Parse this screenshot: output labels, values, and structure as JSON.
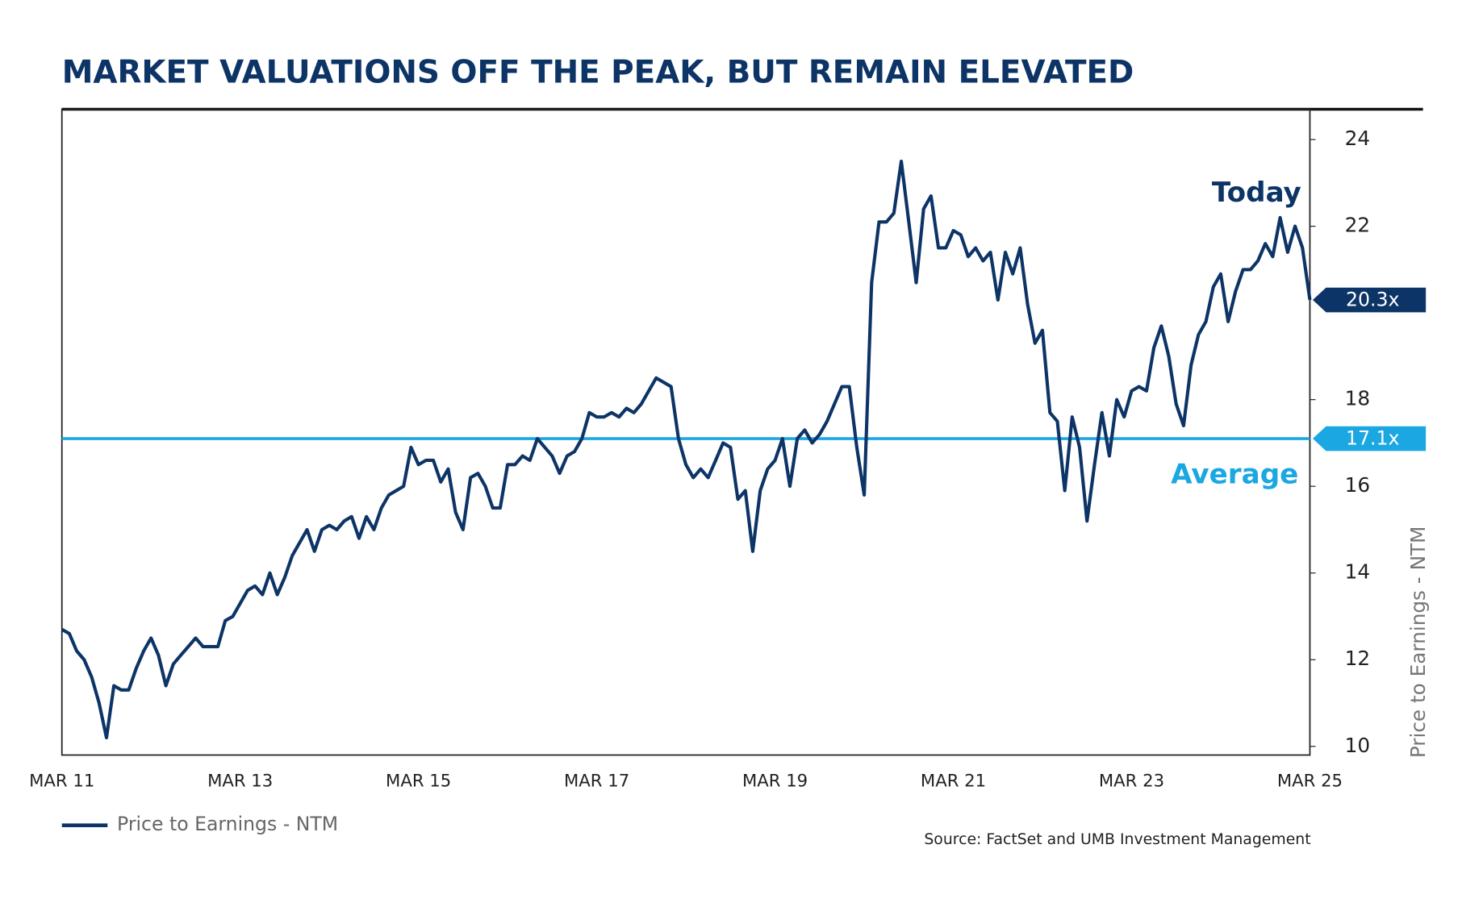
{
  "chart_data": {
    "type": "line",
    "title": "MARKET VALUATIONS OFF THE PEAK, BUT REMAIN ELEVATED",
    "y_axis_label": "Price to Earnings - NTM",
    "source": "Source: FactSet and UMB Investment Management",
    "categories": [
      "MAR 11",
      null,
      null,
      null,
      null,
      null,
      null,
      null,
      null,
      null,
      null,
      null,
      null,
      null,
      null,
      null,
      null,
      null,
      null,
      null,
      null,
      null,
      null,
      null,
      "MAR 13",
      null,
      null,
      null,
      null,
      null,
      null,
      null,
      null,
      null,
      null,
      null,
      null,
      null,
      null,
      null,
      null,
      null,
      null,
      null,
      null,
      null,
      null,
      null,
      "MAR 15",
      null,
      null,
      null,
      null,
      null,
      null,
      null,
      null,
      null,
      null,
      null,
      null,
      null,
      null,
      null,
      null,
      null,
      null,
      null,
      null,
      null,
      null,
      null,
      "MAR 17",
      null,
      null,
      null,
      null,
      null,
      null,
      null,
      null,
      null,
      null,
      null,
      null,
      null,
      null,
      null,
      null,
      null,
      null,
      null,
      null,
      null,
      null,
      null,
      "MAR 19",
      null,
      null,
      null,
      null,
      null,
      null,
      null,
      null,
      null,
      null,
      null,
      null,
      null,
      null,
      null,
      null,
      null,
      null,
      null,
      null,
      null,
      null,
      null,
      "MAR 21",
      null,
      null,
      null,
      null,
      null,
      null,
      null,
      null,
      null,
      null,
      null,
      null,
      null,
      null,
      null,
      null,
      null,
      null,
      null,
      null,
      null,
      null,
      null,
      "MAR 23",
      null,
      null,
      null,
      null,
      null,
      null,
      null,
      null,
      null,
      null,
      null,
      null,
      null,
      null,
      null,
      null,
      null,
      null,
      null,
      null,
      null,
      null,
      null,
      "MAR 25"
    ],
    "series": [
      {
        "name": "Price to Earnings - NTM",
        "color": "#0d3466",
        "values": [
          12.7,
          12.6,
          12.2,
          12.0,
          11.6,
          11.0,
          10.2,
          11.4,
          11.3,
          11.3,
          11.8,
          12.2,
          12.5,
          12.1,
          11.4,
          11.9,
          12.1,
          12.3,
          12.5,
          12.3,
          12.3,
          12.3,
          12.9,
          13.0,
          13.3,
          13.6,
          13.7,
          13.5,
          14.0,
          13.5,
          13.9,
          14.4,
          14.7,
          15.0,
          14.5,
          15.0,
          15.1,
          15.0,
          15.2,
          15.3,
          14.8,
          15.3,
          15.0,
          15.5,
          15.8,
          15.9,
          16.0,
          16.9,
          16.5,
          16.6,
          16.6,
          16.1,
          16.4,
          15.4,
          15.0,
          16.2,
          16.3,
          16.0,
          15.5,
          15.5,
          16.5,
          16.5,
          16.7,
          16.6,
          17.1,
          16.9,
          16.7,
          16.3,
          16.7,
          16.8,
          17.1,
          17.7,
          17.6,
          17.6,
          17.7,
          17.6,
          17.8,
          17.7,
          17.9,
          18.2,
          18.5,
          18.4,
          18.3,
          17.1,
          16.5,
          16.2,
          16.4,
          16.2,
          16.6,
          17.0,
          16.9,
          15.7,
          15.9,
          14.5,
          15.9,
          16.4,
          16.6,
          17.1,
          16.0,
          17.1,
          17.3,
          17.0,
          17.2,
          17.5,
          17.9,
          18.3,
          18.3,
          16.9,
          15.8,
          20.7,
          22.1,
          22.1,
          22.3,
          23.5,
          22.1,
          20.7,
          22.4,
          22.7,
          21.5,
          21.5,
          21.9,
          21.8,
          21.3,
          21.5,
          21.2,
          21.4,
          20.3,
          21.4,
          20.9,
          21.5,
          20.2,
          19.3,
          19.6,
          17.7,
          17.5,
          15.9,
          17.6,
          16.9,
          15.2,
          16.5,
          17.7,
          16.7,
          18.0,
          17.6,
          18.2,
          18.3,
          18.2,
          19.2,
          19.7,
          19.0,
          17.9,
          17.4,
          18.8,
          19.5,
          19.8,
          20.6,
          20.9,
          19.8,
          20.5,
          21.0,
          21.0,
          21.2,
          21.6,
          21.3,
          22.2,
          21.4,
          22.0,
          21.5,
          20.3
        ]
      }
    ],
    "today": {
      "text": "Today",
      "value": 20.3,
      "label": "20.3x",
      "color": "#0d3466"
    },
    "average": {
      "text": "Average",
      "value": 17.1,
      "label": "17.1x",
      "color": "#1ba7e1"
    },
    "ylim": [
      9.8,
      24.7
    ],
    "yticks": [
      10,
      12,
      14,
      16,
      18,
      22,
      24
    ],
    "y_axis_side": "right",
    "grid": false,
    "legend": "bottom-left"
  }
}
